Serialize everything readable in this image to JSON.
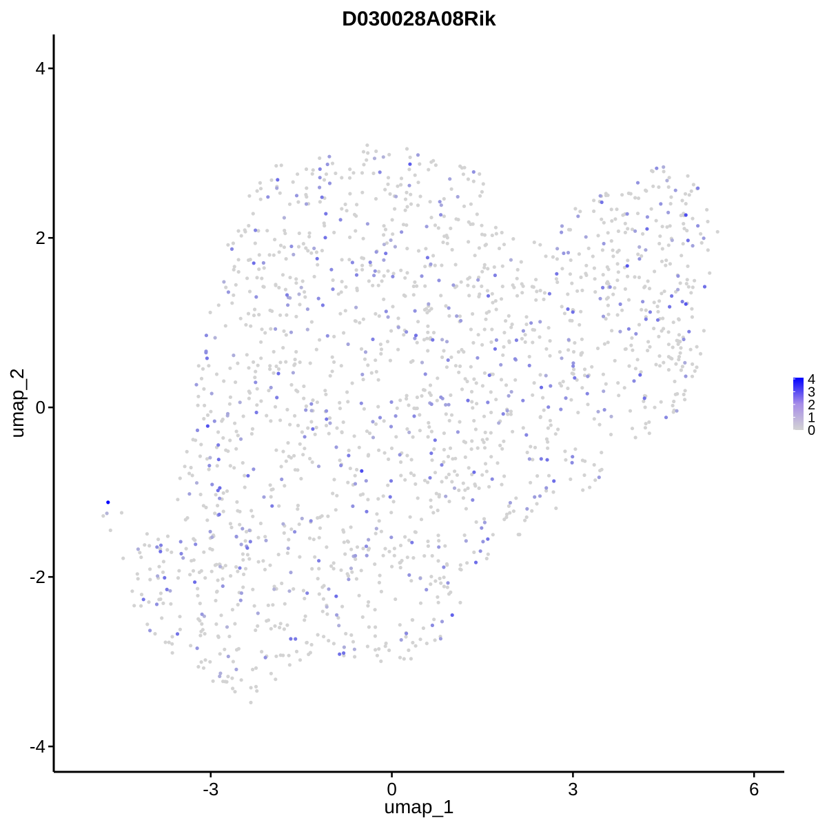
{
  "chart_data": {
    "type": "scatter",
    "title": "D030028A08Rik",
    "xlabel": "umap_1",
    "ylabel": "umap_2",
    "xlim": [
      -5.6,
      6.5
    ],
    "ylim": [
      -4.3,
      4.4
    ],
    "xticks": [
      -3,
      0,
      3,
      6
    ],
    "yticks": [
      -4,
      -2,
      0,
      2,
      4
    ],
    "xtick_labels": [
      "-3",
      "0",
      "3",
      "6"
    ],
    "ytick_labels": [
      "-4",
      "-2",
      "0",
      "2",
      "4"
    ],
    "grid": false,
    "legend": {
      "placement": "right",
      "kind": "color-gradient",
      "ticks": [
        0,
        1,
        2,
        3,
        4
      ],
      "tick_labels": [
        "0",
        "1",
        "2",
        "3",
        "4"
      ],
      "range": [
        0,
        4.1
      ]
    },
    "color_low": "#d3d3d3",
    "color_high": "#0000ff",
    "point_count_approx": 1800,
    "cluster_outline": [
      [
        -4.6,
        -1.1
      ],
      [
        -4.2,
        -1.5
      ],
      [
        -3.7,
        -1.2
      ],
      [
        -3.3,
        -0.3
      ],
      [
        -3.2,
        0.7
      ],
      [
        -2.9,
        1.4
      ],
      [
        -2.7,
        2.1
      ],
      [
        -2.3,
        2.6
      ],
      [
        -1.9,
        2.9
      ],
      [
        -1.2,
        3.0
      ],
      [
        -0.4,
        3.1
      ],
      [
        0.2,
        3.1
      ],
      [
        0.8,
        2.9
      ],
      [
        1.6,
        2.8
      ],
      [
        1.6,
        2.2
      ],
      [
        2.2,
        1.9
      ],
      [
        2.8,
        2.3
      ],
      [
        3.4,
        2.5
      ],
      [
        4.0,
        2.6
      ],
      [
        4.5,
        3.0
      ],
      [
        5.0,
        2.7
      ],
      [
        5.4,
        2.1
      ],
      [
        5.3,
        1.4
      ],
      [
        5.1,
        0.5
      ],
      [
        4.8,
        0.0
      ],
      [
        4.2,
        -0.4
      ],
      [
        3.6,
        -0.5
      ],
      [
        3.4,
        -0.9
      ],
      [
        3.0,
        -1.1
      ],
      [
        2.3,
        -1.4
      ],
      [
        1.8,
        -1.7
      ],
      [
        1.3,
        -2.2
      ],
      [
        0.9,
        -2.7
      ],
      [
        0.3,
        -3.0
      ],
      [
        -0.4,
        -3.0
      ],
      [
        -1.2,
        -2.9
      ],
      [
        -1.9,
        -3.2
      ],
      [
        -2.3,
        -3.5
      ],
      [
        -2.7,
        -3.4
      ],
      [
        -3.3,
        -3.1
      ],
      [
        -3.8,
        -2.9
      ],
      [
        -4.2,
        -2.5
      ],
      [
        -4.4,
        -2.1
      ],
      [
        -4.3,
        -1.7
      ]
    ],
    "seed": 20240531,
    "highlight_points": [
      {
        "x": -4.7,
        "y": -1.12,
        "value": 4.1
      },
      {
        "x": 4.87,
        "y": 2.27,
        "value": 2.6
      },
      {
        "x": 4.87,
        "y": 1.22,
        "value": 2.4
      },
      {
        "x": -3.05,
        "y": -0.22,
        "value": 2.5
      },
      {
        "x": -0.5,
        "y": -0.75,
        "value": 2.6
      },
      {
        "x": 0.3,
        "y": 2.87,
        "value": 2.3
      },
      {
        "x": 3.9,
        "y": 1.67,
        "value": 2.4
      },
      {
        "x": -2.85,
        "y": -0.95,
        "value": 2.0
      },
      {
        "x": 1.0,
        "y": -2.45,
        "value": 2.2
      }
    ]
  }
}
